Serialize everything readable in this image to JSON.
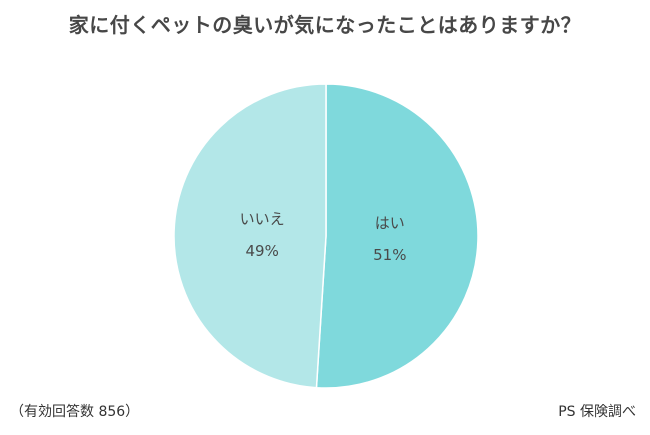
{
  "chart_data": {
    "type": "pie",
    "title": "家に付くペットの臭いが気になったことはありますか？",
    "slices": [
      {
        "label": "はい",
        "value": 51,
        "value_text": "51%",
        "color": "#7fd9dc"
      },
      {
        "label": "いいえ",
        "value": 49,
        "value_text": "49%",
        "color": "#b3e7e8"
      }
    ],
    "start_angle": "12 o'clock",
    "direction": "clockwise"
  },
  "footnotes": {
    "sample": "（有効回答数 856）",
    "source": "PS 保険調べ"
  }
}
